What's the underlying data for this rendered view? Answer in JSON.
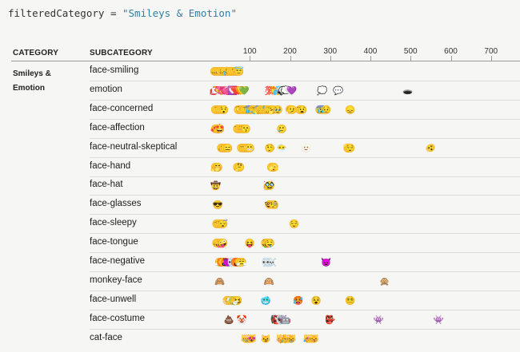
{
  "code": {
    "variable": "filteredCategory",
    "operator": " = ",
    "value": "\"Smileys & Emotion\""
  },
  "table": {
    "category_header": "CATEGORY",
    "subcategory_header": "SUBCATEGORY",
    "category": "Smileys & Emotion"
  },
  "chart_data": {
    "type": "scatter",
    "title": "",
    "xlabel": "",
    "ylabel": "",
    "xlim": [
      0,
      750
    ],
    "x_ticks": [
      100,
      200,
      300,
      400,
      500,
      600,
      700
    ],
    "rows": [
      {
        "label": "face-smiling",
        "points": [
          {
            "x": 13,
            "e": "😀"
          },
          {
            "x": 18,
            "e": "😃"
          },
          {
            "x": 23,
            "e": "😄"
          },
          {
            "x": 28,
            "e": "😁"
          },
          {
            "x": 33,
            "e": "😆"
          },
          {
            "x": 38,
            "e": "😅"
          },
          {
            "x": 43,
            "e": "🤣"
          },
          {
            "x": 48,
            "e": "😂"
          },
          {
            "x": 53,
            "e": "🙂"
          },
          {
            "x": 58,
            "e": "🙃"
          },
          {
            "x": 63,
            "e": "😉"
          },
          {
            "x": 68,
            "e": "😊"
          },
          {
            "x": 73,
            "e": "😇"
          }
        ]
      },
      {
        "label": "emotion",
        "points": [
          {
            "x": 12,
            "e": "💋"
          },
          {
            "x": 17,
            "e": "💌"
          },
          {
            "x": 22,
            "e": "💘"
          },
          {
            "x": 27,
            "e": "💝"
          },
          {
            "x": 32,
            "e": "💖"
          },
          {
            "x": 37,
            "e": "💗"
          },
          {
            "x": 42,
            "e": "💓"
          },
          {
            "x": 47,
            "e": "💞"
          },
          {
            "x": 52,
            "e": "💕"
          },
          {
            "x": 57,
            "e": "💟"
          },
          {
            "x": 62,
            "e": "❣️"
          },
          {
            "x": 67,
            "e": "💔"
          },
          {
            "x": 72,
            "e": "❤️"
          },
          {
            "x": 77,
            "e": "🧡"
          },
          {
            "x": 82,
            "e": "💛"
          },
          {
            "x": 86,
            "e": "💚"
          },
          {
            "x": 150,
            "e": "💯"
          },
          {
            "x": 155,
            "e": "💢"
          },
          {
            "x": 160,
            "e": "💥"
          },
          {
            "x": 165,
            "e": "💫"
          },
          {
            "x": 170,
            "e": "💦"
          },
          {
            "x": 175,
            "e": "💨"
          },
          {
            "x": 180,
            "e": "🕳️"
          },
          {
            "x": 185,
            "e": "💬"
          },
          {
            "x": 190,
            "e": "💭"
          },
          {
            "x": 199,
            "e": "🤍"
          },
          {
            "x": 204,
            "e": "💜"
          },
          {
            "x": 280,
            "e": "💭"
          },
          {
            "x": 320,
            "e": "💬"
          },
          {
            "x": 493,
            "e": "🕳️"
          }
        ]
      },
      {
        "label": "face-concerned",
        "points": [
          {
            "x": 15,
            "e": "😕"
          },
          {
            "x": 20,
            "e": "😟"
          },
          {
            "x": 25,
            "e": "🙁"
          },
          {
            "x": 30,
            "e": "😮"
          },
          {
            "x": 35,
            "e": "😯"
          },
          {
            "x": 72,
            "e": "😲"
          },
          {
            "x": 77,
            "e": "😳"
          },
          {
            "x": 82,
            "e": "🥺"
          },
          {
            "x": 87,
            "e": "😦"
          },
          {
            "x": 92,
            "e": "😧"
          },
          {
            "x": 97,
            "e": "😨"
          },
          {
            "x": 102,
            "e": "😰"
          },
          {
            "x": 107,
            "e": "😥"
          },
          {
            "x": 112,
            "e": "😢"
          },
          {
            "x": 117,
            "e": "😭"
          },
          {
            "x": 122,
            "e": "😱"
          },
          {
            "x": 127,
            "e": "😖"
          },
          {
            "x": 132,
            "e": "😣"
          },
          {
            "x": 137,
            "e": "😞"
          },
          {
            "x": 142,
            "e": "😓"
          },
          {
            "x": 147,
            "e": "😩"
          },
          {
            "x": 152,
            "e": "😫"
          },
          {
            "x": 157,
            "e": "🥱"
          },
          {
            "x": 170,
            "e": "🥹"
          },
          {
            "x": 200,
            "e": "😮‍💨"
          },
          {
            "x": 205,
            "e": "🫤"
          },
          {
            "x": 225,
            "e": "😯"
          },
          {
            "x": 230,
            "e": "😧"
          },
          {
            "x": 275,
            "e": "😨"
          },
          {
            "x": 280,
            "e": "😰"
          },
          {
            "x": 290,
            "e": "😥"
          },
          {
            "x": 350,
            "e": "😞"
          }
        ]
      },
      {
        "label": "face-affection",
        "points": [
          {
            "x": 15,
            "e": "🥰"
          },
          {
            "x": 20,
            "e": "😍"
          },
          {
            "x": 25,
            "e": "🤩"
          },
          {
            "x": 70,
            "e": "😘"
          },
          {
            "x": 75,
            "e": "😗"
          },
          {
            "x": 80,
            "e": "☺️"
          },
          {
            "x": 85,
            "e": "😚"
          },
          {
            "x": 90,
            "e": "😙"
          },
          {
            "x": 180,
            "e": "🥲"
          }
        ]
      },
      {
        "label": "face-neutral-skeptical",
        "points": [
          {
            "x": 30,
            "e": "🤐"
          },
          {
            "x": 35,
            "e": "🤨"
          },
          {
            "x": 40,
            "e": "😐"
          },
          {
            "x": 45,
            "e": "😑"
          },
          {
            "x": 80,
            "e": "😶"
          },
          {
            "x": 85,
            "e": "😏"
          },
          {
            "x": 90,
            "e": "😒"
          },
          {
            "x": 95,
            "e": "🙄"
          },
          {
            "x": 100,
            "e": "😬"
          },
          {
            "x": 150,
            "e": "🤥"
          },
          {
            "x": 180,
            "e": "😶‍🌫️"
          },
          {
            "x": 240,
            "e": "🫥"
          },
          {
            "x": 345,
            "e": "🫡"
          },
          {
            "x": 350,
            "e": "😌"
          },
          {
            "x": 550,
            "e": "🫨"
          }
        ]
      },
      {
        "label": "face-hand",
        "points": [
          {
            "x": 15,
            "e": "🤗"
          },
          {
            "x": 20,
            "e": "🤭"
          },
          {
            "x": 70,
            "e": "🤫"
          },
          {
            "x": 75,
            "e": "🤔"
          },
          {
            "x": 155,
            "e": "🫢"
          },
          {
            "x": 160,
            "e": "🫣"
          }
        ]
      },
      {
        "label": "face-hat",
        "points": [
          {
            "x": 15,
            "e": "🤠"
          },
          {
            "x": 145,
            "e": "🥳"
          },
          {
            "x": 150,
            "e": "🥸"
          }
        ]
      },
      {
        "label": "face-glasses",
        "points": [
          {
            "x": 20,
            "e": "😎"
          },
          {
            "x": 150,
            "e": "🤓"
          },
          {
            "x": 160,
            "e": "🧐"
          }
        ]
      },
      {
        "label": "face-sleepy",
        "points": [
          {
            "x": 18,
            "e": "😔"
          },
          {
            "x": 23,
            "e": "😪"
          },
          {
            "x": 28,
            "e": "🤤"
          },
          {
            "x": 33,
            "e": "😴"
          },
          {
            "x": 210,
            "e": "😌"
          }
        ]
      },
      {
        "label": "face-tongue",
        "points": [
          {
            "x": 18,
            "e": "😋"
          },
          {
            "x": 23,
            "e": "😛"
          },
          {
            "x": 28,
            "e": "😜"
          },
          {
            "x": 33,
            "e": "🤪"
          },
          {
            "x": 100,
            "e": "😝"
          },
          {
            "x": 140,
            "e": "🤑"
          },
          {
            "x": 145,
            "e": "😝"
          },
          {
            "x": 150,
            "e": "🤤"
          }
        ]
      },
      {
        "label": "face-negative",
        "points": [
          {
            "x": 25,
            "e": "😤"
          },
          {
            "x": 30,
            "e": "😡"
          },
          {
            "x": 35,
            "e": "😠"
          },
          {
            "x": 40,
            "e": "🤬"
          },
          {
            "x": 45,
            "e": "😈"
          },
          {
            "x": 50,
            "e": "👿"
          },
          {
            "x": 55,
            "e": "💀"
          },
          {
            "x": 60,
            "e": "☠️"
          },
          {
            "x": 65,
            "e": "😡"
          },
          {
            "x": 70,
            "e": "🤬"
          },
          {
            "x": 75,
            "e": "😠"
          },
          {
            "x": 80,
            "e": "😤"
          },
          {
            "x": 140,
            "e": "💀"
          },
          {
            "x": 145,
            "e": "☠️"
          },
          {
            "x": 150,
            "e": "💀"
          },
          {
            "x": 155,
            "e": "☠️"
          },
          {
            "x": 290,
            "e": "👿"
          }
        ]
      },
      {
        "label": "monkey-face",
        "points": [
          {
            "x": 25,
            "e": "🙈"
          },
          {
            "x": 148,
            "e": "🙉"
          },
          {
            "x": 435,
            "e": "🙊"
          }
        ]
      },
      {
        "label": "face-unwell",
        "points": [
          {
            "x": 44,
            "e": "😷"
          },
          {
            "x": 49,
            "e": "🤒"
          },
          {
            "x": 54,
            "e": "🤕"
          },
          {
            "x": 59,
            "e": "🤢"
          },
          {
            "x": 64,
            "e": "🤮"
          },
          {
            "x": 69,
            "e": "🤧"
          },
          {
            "x": 140,
            "e": "🥶"
          },
          {
            "x": 220,
            "e": "🥵"
          },
          {
            "x": 265,
            "e": "😵"
          },
          {
            "x": 350,
            "e": "😵‍💫"
          }
        ]
      },
      {
        "label": "face-costume",
        "points": [
          {
            "x": 48,
            "e": "💩"
          },
          {
            "x": 80,
            "e": "🤡"
          },
          {
            "x": 165,
            "e": "👹"
          },
          {
            "x": 170,
            "e": "👺"
          },
          {
            "x": 175,
            "e": "👻"
          },
          {
            "x": 180,
            "e": "👽"
          },
          {
            "x": 185,
            "e": "👾"
          },
          {
            "x": 190,
            "e": "🤖"
          },
          {
            "x": 300,
            "e": "👺"
          },
          {
            "x": 420,
            "e": "👾"
          },
          {
            "x": 570,
            "e": "👾"
          }
        ]
      },
      {
        "label": "cat-face",
        "points": [
          {
            "x": 90,
            "e": "😺"
          },
          {
            "x": 95,
            "e": "😸"
          },
          {
            "x": 100,
            "e": "😹"
          },
          {
            "x": 105,
            "e": "😻"
          },
          {
            "x": 140,
            "e": "😼"
          },
          {
            "x": 178,
            "e": "😽"
          },
          {
            "x": 183,
            "e": "🙀"
          },
          {
            "x": 188,
            "e": "😿"
          },
          {
            "x": 193,
            "e": "😾"
          },
          {
            "x": 198,
            "e": "😺"
          },
          {
            "x": 203,
            "e": "😸"
          },
          {
            "x": 245,
            "e": "😹"
          },
          {
            "x": 250,
            "e": "😻"
          },
          {
            "x": 255,
            "e": "😼"
          },
          {
            "x": 260,
            "e": "😽"
          }
        ]
      }
    ]
  }
}
